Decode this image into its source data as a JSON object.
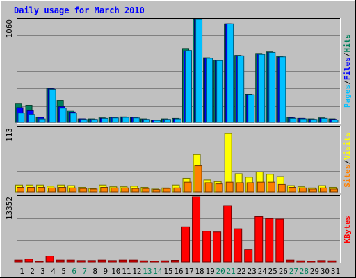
{
  "chart_data": {
    "type": "bar",
    "title": "Daily usage for March 2010",
    "categories": [
      "1",
      "2",
      "3",
      "4",
      "5",
      "6",
      "7",
      "8",
      "9",
      "10",
      "11",
      "12",
      "13",
      "14",
      "15",
      "16",
      "17",
      "18",
      "19",
      "20",
      "21",
      "22",
      "23",
      "24",
      "25",
      "26",
      "27",
      "28",
      "29",
      "30",
      "31"
    ],
    "weekend_days": [
      "6",
      "7",
      "13",
      "14",
      "20",
      "21",
      "27",
      "28"
    ],
    "panels": [
      {
        "name": "hits-files-pages",
        "ymax_label": "1060",
        "ymax": 1060,
        "right_label": [
          "Pages",
          "/",
          "Files",
          "/",
          "Hits"
        ],
        "series": [
          {
            "name": "Hits",
            "color": "#00805c",
            "values": [
              195,
              175,
              50,
              350,
              225,
              120,
              35,
              35,
              45,
              50,
              55,
              50,
              35,
              25,
              35,
              40,
              760,
              1060,
              665,
              640,
              1015,
              690,
              290,
              710,
              725,
              680,
              50,
              40,
              35,
              45,
              35
            ]
          },
          {
            "name": "Files",
            "color": "#0000ff",
            "values": [
              150,
              125,
              50,
              345,
              160,
              105,
              35,
              30,
              40,
              50,
              50,
              50,
              30,
              25,
              30,
              35,
              735,
              1060,
              660,
              635,
              1015,
              685,
              285,
              705,
              720,
              670,
              45,
              40,
              30,
              40,
              30
            ]
          },
          {
            "name": "Pages",
            "color": "#00c0ff",
            "values": [
              95,
              80,
              35,
              340,
              145,
              95,
              30,
              30,
              40,
              45,
              50,
              45,
              30,
              20,
              30,
              35,
              740,
              1060,
              660,
              635,
              1015,
              685,
              285,
              700,
              720,
              675,
              40,
              35,
              30,
              40,
              25
            ]
          }
        ]
      },
      {
        "name": "visits-sites",
        "ymax_label": "113",
        "ymax": 113,
        "right_label": [
          "Sites",
          "/",
          "Visits"
        ],
        "series": [
          {
            "name": "Visits",
            "color": "#ffff00",
            "values": [
              12,
              12,
              12,
              10,
              12,
              11,
              8,
              6,
              12,
              9,
              9,
              10,
              8,
              5,
              7,
              12,
              24,
              66,
              21,
              18,
              103,
              32,
              26,
              35,
              31,
              27,
              11,
              9,
              7,
              11,
              8
            ]
          },
          {
            "name": "Sites",
            "color": "#ff8000",
            "values": [
              8,
              8,
              8,
              7,
              8,
              7,
              6,
              5,
              8,
              7,
              7,
              6,
              6,
              4,
              6,
              7,
              17,
              46,
              16,
              14,
              17,
              16,
              16,
              17,
              17,
              13,
              8,
              7,
              5,
              7,
              5
            ]
          }
        ]
      },
      {
        "name": "kbytes",
        "ymax_label": "13352",
        "ymax": 13352,
        "right_label": [
          "KBytes"
        ],
        "series": [
          {
            "name": "KBytes",
            "color": "#ff0000",
            "values": [
              400,
              600,
              180,
              1200,
              400,
              400,
              300,
              300,
              400,
              300,
              400,
              400,
              250,
              200,
              250,
              350,
              7200,
              13352,
              6300,
              6150,
              11500,
              6800,
              2600,
              9300,
              8900,
              8800,
              400,
              250,
              200,
              300,
              250
            ]
          }
        ]
      }
    ]
  }
}
